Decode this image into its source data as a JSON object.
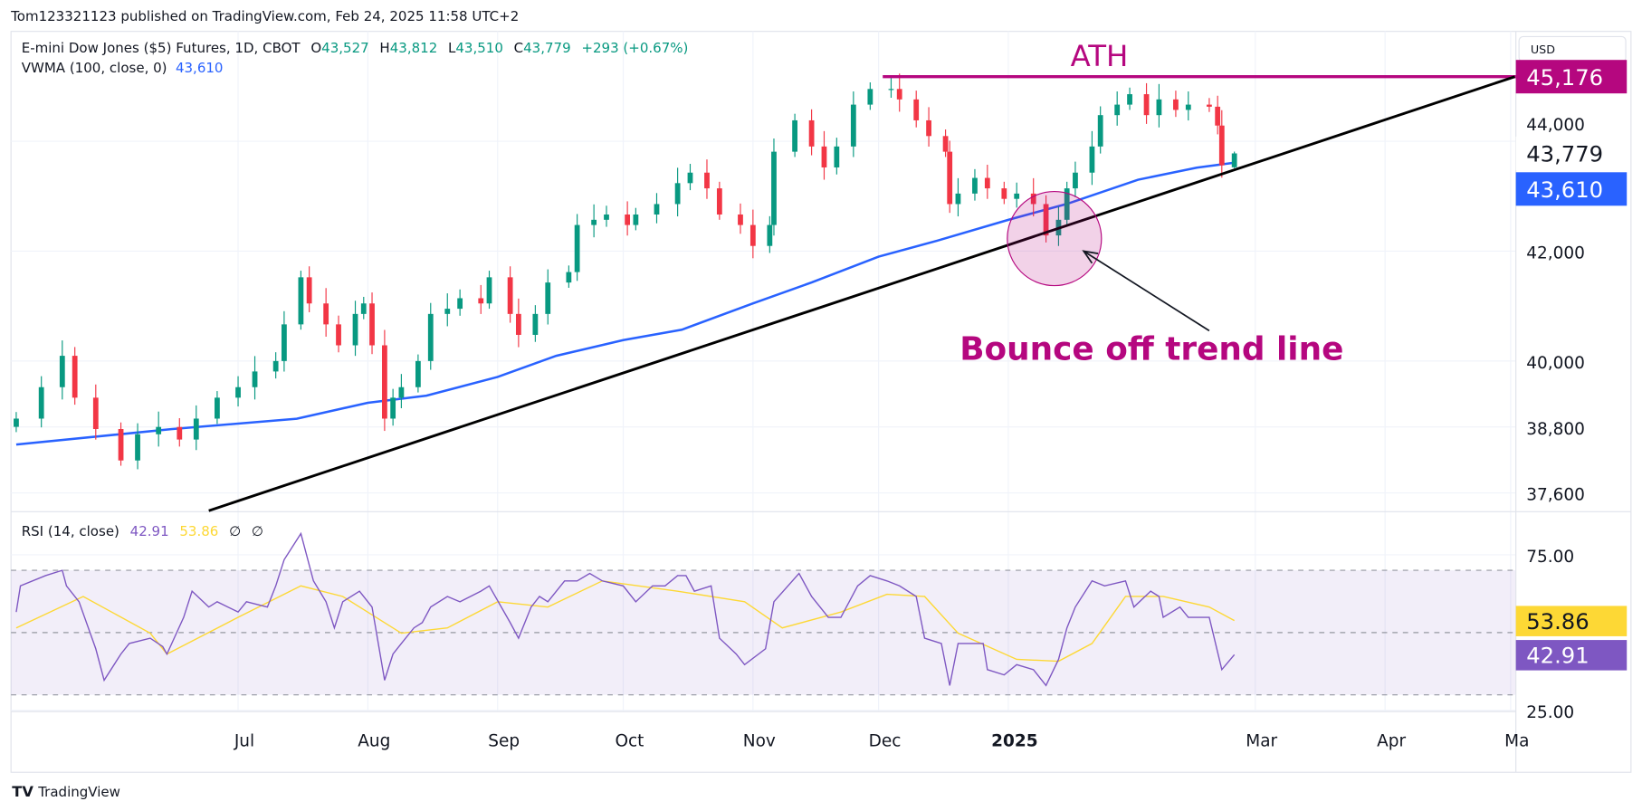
{
  "header": {
    "published": "Tom123321123 published on TradingView.com, Feb 24, 2025 11:58 UTC+2",
    "symbol": "E-mini Dow Jones ($5) Futures, 1D, CBOT",
    "o_label": "O",
    "o": "43,527",
    "h_label": "H",
    "h": "43,812",
    "l_label": "L",
    "l": "43,510",
    "c_label": "C",
    "c": "43,779",
    "change": "+293 (+0.67%)",
    "vwma_label": "VWMA (100, close, 0)",
    "vwma_value": "43,610",
    "rsi_label": "RSI (14, close)",
    "rsi_value": "42.91",
    "rsi_ma_value": "53.86",
    "rsi_extra1": "∅",
    "rsi_extra2": "∅"
  },
  "currency_button": "USD",
  "footer": {
    "logo_text": "TradingView"
  },
  "colors": {
    "up": "#089981",
    "down": "#f23645",
    "vwma": "#2962ff",
    "rsi": "#7e57c2",
    "rsi_ma": "#fdd835",
    "annotation": "#b5077f",
    "trend": "#000000"
  },
  "chart_data": [
    {
      "type": "candlestick",
      "scale": "price",
      "yticks": [
        "44,000",
        "42,000",
        "40,000",
        "38,800",
        "37,600"
      ],
      "ytick_values": [
        44000,
        42000,
        40000,
        38800,
        37600
      ],
      "xticks": [
        {
          "label": "Jul",
          "date": "2024-07-01"
        },
        {
          "label": "Aug",
          "date": "2024-08-01"
        },
        {
          "label": "Sep",
          "date": "2024-09-01"
        },
        {
          "label": "Oct",
          "date": "2024-10-01"
        },
        {
          "label": "Nov",
          "date": "2024-11-01"
        },
        {
          "label": "Dec",
          "date": "2024-12-01"
        },
        {
          "label": "2025",
          "date": "2025-01-01",
          "bold": true
        },
        {
          "label": "Mar",
          "date": "2025-03-01"
        },
        {
          "label": "Apr",
          "date": "2025-04-01"
        },
        {
          "label": "Ma",
          "date": "2025-05-01"
        }
      ],
      "price_labels": [
        {
          "text": "45,176",
          "value": 45176,
          "bg": "#b5077f",
          "fg": "#ffffff"
        },
        {
          "text": "43,779",
          "value": 43779,
          "bg": "#ffffff",
          "fg": "#131722"
        },
        {
          "text": "43,610",
          "value": 43610,
          "bg": "#2962ff",
          "fg": "#ffffff"
        }
      ],
      "closes": [
        [
          "2024-05-09",
          38952
        ],
        [
          "2024-05-15",
          39524
        ],
        [
          "2024-05-20",
          40095
        ],
        [
          "2024-05-23",
          39333
        ],
        [
          "2024-05-28",
          38762
        ],
        [
          "2024-06-03",
          38190
        ],
        [
          "2024-06-07",
          38667
        ],
        [
          "2024-06-12",
          38800
        ],
        [
          "2024-06-17",
          38571
        ],
        [
          "2024-06-21",
          38952
        ],
        [
          "2024-06-26",
          39333
        ],
        [
          "2024-07-01",
          39524
        ],
        [
          "2024-07-05",
          39810
        ],
        [
          "2024-07-10",
          40000
        ],
        [
          "2024-07-12",
          40667
        ],
        [
          "2024-07-16",
          41524
        ],
        [
          "2024-07-18",
          41048
        ],
        [
          "2024-07-22",
          40667
        ],
        [
          "2024-07-25",
          40286
        ],
        [
          "2024-07-29",
          40857
        ],
        [
          "2024-07-31",
          41048
        ],
        [
          "2024-08-02",
          40286
        ],
        [
          "2024-08-05",
          38952
        ],
        [
          "2024-08-07",
          39333
        ],
        [
          "2024-08-09",
          39524
        ],
        [
          "2024-08-13",
          40000
        ],
        [
          "2024-08-16",
          40857
        ],
        [
          "2024-08-20",
          40952
        ],
        [
          "2024-08-23",
          41143
        ],
        [
          "2024-08-28",
          41048
        ],
        [
          "2024-08-30",
          41524
        ],
        [
          "2024-09-04",
          40857
        ],
        [
          "2024-09-06",
          40476
        ],
        [
          "2024-09-10",
          40857
        ],
        [
          "2024-09-13",
          41429
        ],
        [
          "2024-09-18",
          41619
        ],
        [
          "2024-09-20",
          42476
        ],
        [
          "2024-09-24",
          42571
        ],
        [
          "2024-09-27",
          42667
        ],
        [
          "2024-10-02",
          42476
        ],
        [
          "2024-10-04",
          42667
        ],
        [
          "2024-10-09",
          42857
        ],
        [
          "2024-10-14",
          43238
        ],
        [
          "2024-10-17",
          43429
        ],
        [
          "2024-10-21",
          43143
        ],
        [
          "2024-10-24",
          42667
        ],
        [
          "2024-10-29",
          42476
        ],
        [
          "2024-11-01",
          42095
        ],
        [
          "2024-11-05",
          42476
        ],
        [
          "2024-11-06",
          43810
        ],
        [
          "2024-11-11",
          44381
        ],
        [
          "2024-11-15",
          43905
        ],
        [
          "2024-11-18",
          43524
        ],
        [
          "2024-11-21",
          43905
        ],
        [
          "2024-11-25",
          44667
        ],
        [
          "2024-11-29",
          44952
        ],
        [
          "2024-12-04",
          44952
        ],
        [
          "2024-12-06",
          44762
        ],
        [
          "2024-12-10",
          44381
        ],
        [
          "2024-12-13",
          44095
        ],
        [
          "2024-12-17",
          43810
        ],
        [
          "2024-12-18",
          42857
        ],
        [
          "2024-12-20",
          43048
        ],
        [
          "2024-12-24",
          43333
        ],
        [
          "2024-12-27",
          43143
        ],
        [
          "2024-12-31",
          42952
        ],
        [
          "2025-01-03",
          43048
        ],
        [
          "2025-01-07",
          42857
        ],
        [
          "2025-01-10",
          42286
        ],
        [
          "2025-01-13",
          42571
        ],
        [
          "2025-01-15",
          43143
        ],
        [
          "2025-01-17",
          43429
        ],
        [
          "2025-01-21",
          43905
        ],
        [
          "2025-01-23",
          44476
        ],
        [
          "2025-01-27",
          44667
        ],
        [
          "2025-01-30",
          44857
        ],
        [
          "2025-02-03",
          44476
        ],
        [
          "2025-02-06",
          44762
        ],
        [
          "2025-02-10",
          44571
        ],
        [
          "2025-02-13",
          44667
        ],
        [
          "2025-02-18",
          44629
        ],
        [
          "2025-02-20",
          44286
        ],
        [
          "2025-02-21",
          43562
        ],
        [
          "2025-02-24",
          43779
        ]
      ],
      "last_candle": {
        "date": "2025-02-24",
        "open": 43527,
        "high": 43812,
        "low": 43510,
        "close": 43779
      },
      "vwma": [
        [
          "2024-05-09",
          38480
        ],
        [
          "2024-06-15",
          38760
        ],
        [
          "2024-07-15",
          38950
        ],
        [
          "2024-08-01",
          39240
        ],
        [
          "2024-08-15",
          39370
        ],
        [
          "2024-09-01",
          39710
        ],
        [
          "2024-09-15",
          40095
        ],
        [
          "2024-10-01",
          40380
        ],
        [
          "2024-10-15",
          40570
        ],
        [
          "2024-11-01",
          41050
        ],
        [
          "2024-11-15",
          41430
        ],
        [
          "2024-12-01",
          41900
        ],
        [
          "2024-12-15",
          42190
        ],
        [
          "2025-01-01",
          42570
        ],
        [
          "2025-01-15",
          42860
        ],
        [
          "2025-02-01",
          43300
        ],
        [
          "2025-02-15",
          43520
        ],
        [
          "2025-02-24",
          43610
        ]
      ],
      "annotations": {
        "ath_label": "ATH",
        "ath_line": {
          "from": "2024-12-02",
          "price": 45176
        },
        "trend_line": {
          "from": [
            "2024-06-24",
            37276
          ],
          "to": [
            "2025-05-02",
            45176
          ]
        },
        "circle_center": [
          "2025-01-12",
          42229
        ],
        "arrow": {
          "from": [
            "2025-02-18",
            40552
          ],
          "to": [
            "2025-01-19",
            42000
          ]
        },
        "text": "Bounce off trend line"
      }
    },
    {
      "type": "line",
      "name": "RSI (14, close)",
      "yticks": [
        "75.00",
        "25.00"
      ],
      "ytick_values": [
        75,
        25
      ],
      "bands": [
        70,
        50,
        30
      ],
      "value_labels": [
        {
          "text": "53.86",
          "value": 53.86,
          "bg": "#fdd835",
          "fg": "#131722"
        },
        {
          "text": "42.91",
          "value": 42.91,
          "bg": "#7e57c2",
          "fg": "#ffffff"
        }
      ],
      "rsi": [
        [
          "2024-05-09",
          56.6
        ],
        [
          "2024-05-10",
          65
        ],
        [
          "2024-05-16",
          68.3
        ],
        [
          "2024-05-20",
          70
        ],
        [
          "2024-05-21",
          65
        ],
        [
          "2024-05-24",
          59.9
        ],
        [
          "2024-05-28",
          44.8
        ],
        [
          "2024-05-30",
          34.7
        ],
        [
          "2024-06-03",
          43.1
        ],
        [
          "2024-06-05",
          46.5
        ],
        [
          "2024-06-10",
          48.2
        ],
        [
          "2024-06-13",
          45.5
        ],
        [
          "2024-06-14",
          43.1
        ],
        [
          "2024-06-18",
          54.9
        ],
        [
          "2024-06-20",
          63.3
        ],
        [
          "2024-06-24",
          58.2
        ],
        [
          "2024-06-26",
          59.9
        ],
        [
          "2024-07-01",
          56.6
        ],
        [
          "2024-07-03",
          59.9
        ],
        [
          "2024-07-08",
          58.2
        ],
        [
          "2024-07-10",
          65
        ],
        [
          "2024-07-12",
          73.4
        ],
        [
          "2024-07-16",
          81.8
        ],
        [
          "2024-07-19",
          66.6
        ],
        [
          "2024-07-22",
          59.9
        ],
        [
          "2024-07-24",
          51.5
        ],
        [
          "2024-07-26",
          59.9
        ],
        [
          "2024-07-30",
          63.3
        ],
        [
          "2024-08-02",
          58.2
        ],
        [
          "2024-08-05",
          34.7
        ],
        [
          "2024-08-07",
          43.1
        ],
        [
          "2024-08-09",
          46.5
        ],
        [
          "2024-08-12",
          51.5
        ],
        [
          "2024-08-14",
          53.2
        ],
        [
          "2024-08-16",
          58.2
        ],
        [
          "2024-08-20",
          61.6
        ],
        [
          "2024-08-23",
          59.9
        ],
        [
          "2024-08-28",
          63.3
        ],
        [
          "2024-08-30",
          65
        ],
        [
          "2024-09-04",
          53.2
        ],
        [
          "2024-09-06",
          48.2
        ],
        [
          "2024-09-09",
          58.2
        ],
        [
          "2024-09-11",
          61.6
        ],
        [
          "2024-09-13",
          59.9
        ],
        [
          "2024-09-17",
          66.6
        ],
        [
          "2024-09-20",
          66.6
        ],
        [
          "2024-09-23",
          69
        ],
        [
          "2024-09-26",
          66.6
        ],
        [
          "2024-10-01",
          65
        ],
        [
          "2024-10-04",
          59.9
        ],
        [
          "2024-10-08",
          65
        ],
        [
          "2024-10-11",
          65
        ],
        [
          "2024-10-14",
          68.3
        ],
        [
          "2024-10-16",
          68.3
        ],
        [
          "2024-10-18",
          63.3
        ],
        [
          "2024-10-22",
          65
        ],
        [
          "2024-10-24",
          48.2
        ],
        [
          "2024-10-28",
          43.1
        ],
        [
          "2024-10-30",
          39.7
        ],
        [
          "2024-11-04",
          44.8
        ],
        [
          "2024-11-06",
          59.9
        ],
        [
          "2024-11-12",
          69
        ],
        [
          "2024-11-15",
          61.6
        ],
        [
          "2024-11-19",
          54.9
        ],
        [
          "2024-11-22",
          54.9
        ],
        [
          "2024-11-26",
          65
        ],
        [
          "2024-11-29",
          68.3
        ],
        [
          "2024-12-03",
          66.6
        ],
        [
          "2024-12-06",
          65
        ],
        [
          "2024-12-10",
          61.6
        ],
        [
          "2024-12-12",
          48.2
        ],
        [
          "2024-12-16",
          46.5
        ],
        [
          "2024-12-18",
          33
        ],
        [
          "2024-12-20",
          46.5
        ],
        [
          "2024-12-26",
          46.5
        ],
        [
          "2024-12-27",
          38.1
        ],
        [
          "2024-12-31",
          36.4
        ],
        [
          "2025-01-03",
          39.7
        ],
        [
          "2025-01-07",
          38.1
        ],
        [
          "2025-01-10",
          33
        ],
        [
          "2025-01-13",
          41.4
        ],
        [
          "2025-01-15",
          51.5
        ],
        [
          "2025-01-17",
          58.2
        ],
        [
          "2025-01-21",
          66.6
        ],
        [
          "2025-01-24",
          65
        ],
        [
          "2025-01-29",
          66.6
        ],
        [
          "2025-01-31",
          58.2
        ],
        [
          "2025-02-04",
          63.3
        ],
        [
          "2025-02-06",
          61.6
        ],
        [
          "2025-02-07",
          54.9
        ],
        [
          "2025-02-11",
          58.2
        ],
        [
          "2025-02-13",
          54.9
        ],
        [
          "2025-02-18",
          54.9
        ],
        [
          "2025-02-21",
          38.1
        ],
        [
          "2025-02-24",
          42.91
        ]
      ],
      "rsi_ma": [
        [
          "2024-05-09",
          51.5
        ],
        [
          "2024-05-25",
          61.6
        ],
        [
          "2024-06-10",
          49.8
        ],
        [
          "2024-06-14",
          43.1
        ],
        [
          "2024-07-01",
          54.9
        ],
        [
          "2024-07-16",
          65
        ],
        [
          "2024-07-26",
          61.6
        ],
        [
          "2024-08-09",
          49.8
        ],
        [
          "2024-08-20",
          51.5
        ],
        [
          "2024-09-01",
          59.9
        ],
        [
          "2024-09-13",
          58.2
        ],
        [
          "2024-09-26",
          66.6
        ],
        [
          "2024-10-14",
          63.3
        ],
        [
          "2024-10-30",
          59.9
        ],
        [
          "2024-11-08",
          51.5
        ],
        [
          "2024-11-22",
          56.6
        ],
        [
          "2024-12-03",
          62.3
        ],
        [
          "2024-12-12",
          61.6
        ],
        [
          "2024-12-20",
          49.8
        ],
        [
          "2025-01-03",
          41.4
        ],
        [
          "2025-01-13",
          40.8
        ],
        [
          "2025-01-21",
          46.5
        ],
        [
          "2025-01-29",
          61.6
        ],
        [
          "2025-02-07",
          61.6
        ],
        [
          "2025-02-18",
          58.2
        ],
        [
          "2025-02-24",
          53.86
        ]
      ]
    }
  ]
}
